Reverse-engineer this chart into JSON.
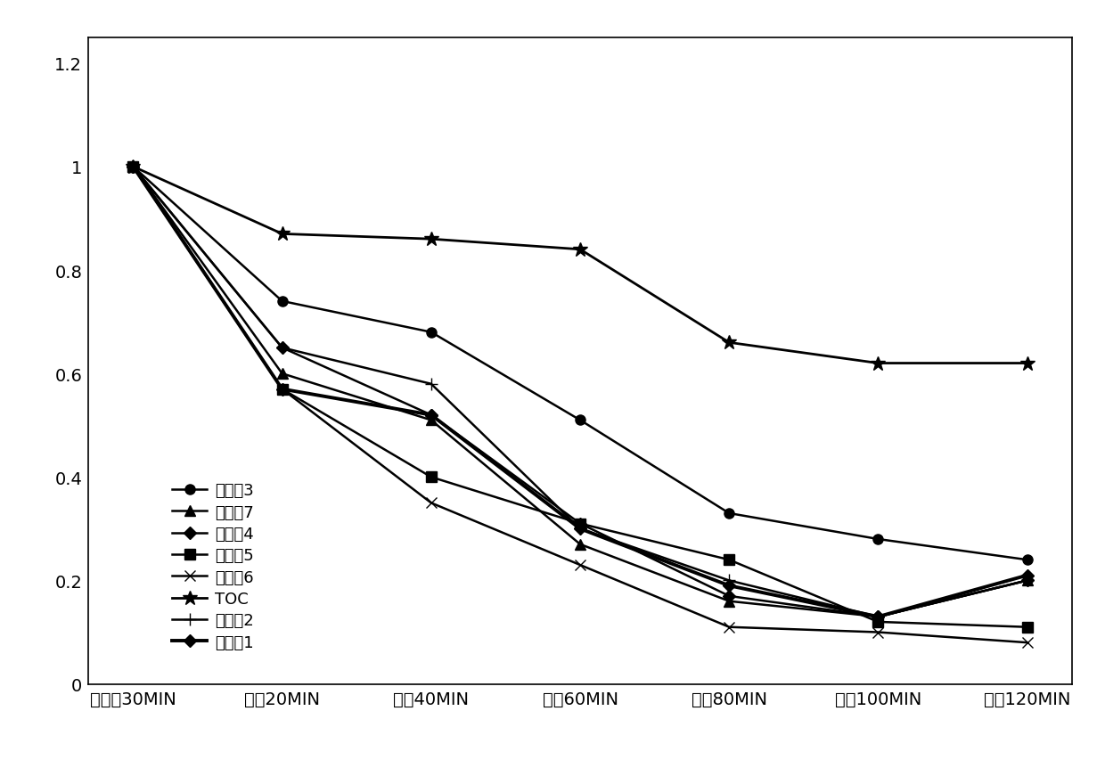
{
  "x_labels": [
    "暗反应30MIN",
    "光照20MIN",
    "光照40MIN",
    "光照60MIN",
    "光照80MIN",
    "光照100MIN",
    "光照120MIN"
  ],
  "series": [
    {
      "name": "实施例3",
      "marker": "o",
      "markersize": 8,
      "linewidth": 1.8,
      "values": [
        1.0,
        0.74,
        0.68,
        0.51,
        0.33,
        0.28,
        0.24
      ]
    },
    {
      "name": "实施例7",
      "marker": "^",
      "markersize": 8,
      "linewidth": 1.8,
      "values": [
        1.0,
        0.6,
        0.51,
        0.27,
        0.16,
        0.13,
        0.2
      ]
    },
    {
      "name": "实施例4",
      "marker": "D",
      "markersize": 7,
      "linewidth": 1.8,
      "values": [
        1.0,
        0.65,
        0.52,
        0.31,
        0.17,
        0.13,
        0.2
      ]
    },
    {
      "name": "实施例5",
      "marker": "s",
      "markersize": 8,
      "linewidth": 1.8,
      "values": [
        1.0,
        0.57,
        0.4,
        0.31,
        0.24,
        0.12,
        0.11
      ]
    },
    {
      "name": "实施例6",
      "marker": "x",
      "markersize": 9,
      "linewidth": 1.8,
      "values": [
        1.0,
        0.57,
        0.35,
        0.23,
        0.11,
        0.1,
        0.08
      ]
    },
    {
      "name": "TOC",
      "marker": "*",
      "markersize": 12,
      "linewidth": 2.0,
      "values": [
        1.0,
        0.87,
        0.86,
        0.84,
        0.66,
        0.62,
        0.62
      ]
    },
    {
      "name": "实施例2",
      "marker": "+",
      "markersize": 10,
      "linewidth": 1.8,
      "values": [
        1.0,
        0.65,
        0.58,
        0.3,
        0.2,
        0.13,
        0.2
      ]
    },
    {
      "name": "实施例1",
      "marker": "D",
      "markersize": 7,
      "linewidth": 2.8,
      "values": [
        1.0,
        0.57,
        0.52,
        0.3,
        0.19,
        0.13,
        0.21
      ]
    }
  ],
  "ylim": [
    0,
    1.25
  ],
  "yticks": [
    0,
    0.2,
    0.4,
    0.6,
    0.8,
    1.0,
    1.2
  ],
  "ytick_labels": [
    "0",
    "0.2",
    "0.4",
    "0.6",
    "0.8",
    "1",
    "1.2"
  ],
  "color": "#000000",
  "background_color": "#ffffff",
  "fontsize_ticks": 14,
  "fontsize_legend": 13
}
